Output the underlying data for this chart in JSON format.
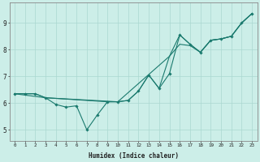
{
  "xlabel": "Humidex (Indice chaleur)",
  "bg_color": "#cceee8",
  "grid_color": "#aad8d0",
  "line_color": "#1a7a6e",
  "xlim": [
    -0.5,
    23.5
  ],
  "ylim": [
    4.6,
    9.75
  ],
  "xticks": [
    0,
    1,
    2,
    3,
    4,
    5,
    6,
    7,
    8,
    9,
    10,
    11,
    12,
    13,
    14,
    15,
    16,
    17,
    18,
    19,
    20,
    21,
    22,
    23
  ],
  "yticks": [
    5,
    6,
    7,
    8,
    9
  ],
  "line1_x": [
    0,
    1,
    2,
    3,
    4,
    5,
    6,
    7,
    8,
    9,
    10,
    11,
    12,
    13,
    14,
    15,
    16,
    17,
    18,
    19,
    20,
    21,
    22,
    23
  ],
  "line1_y": [
    6.35,
    6.35,
    6.35,
    6.2,
    5.95,
    5.85,
    5.9,
    5.0,
    5.55,
    6.05,
    6.05,
    6.1,
    6.45,
    7.05,
    6.55,
    7.1,
    8.55,
    8.2,
    7.9,
    8.35,
    8.4,
    8.5,
    9.0,
    9.35
  ],
  "line2_x": [
    0,
    1,
    2,
    3,
    9,
    10,
    11,
    12,
    13,
    14,
    15,
    16,
    17,
    18,
    19,
    20,
    21,
    22,
    23
  ],
  "line2_y": [
    6.35,
    6.35,
    6.35,
    6.2,
    6.05,
    6.05,
    6.1,
    6.45,
    7.05,
    6.55,
    7.75,
    8.2,
    8.15,
    7.9,
    8.35,
    8.4,
    8.5,
    9.0,
    9.35
  ],
  "line3_x": [
    0,
    3,
    10,
    15,
    16,
    17,
    18,
    19,
    20,
    21,
    22,
    23
  ],
  "line3_y": [
    6.35,
    6.2,
    6.05,
    7.75,
    8.55,
    8.2,
    7.9,
    8.35,
    8.4,
    8.5,
    9.0,
    9.35
  ],
  "figsize": [
    3.2,
    2.0
  ],
  "dpi": 100
}
